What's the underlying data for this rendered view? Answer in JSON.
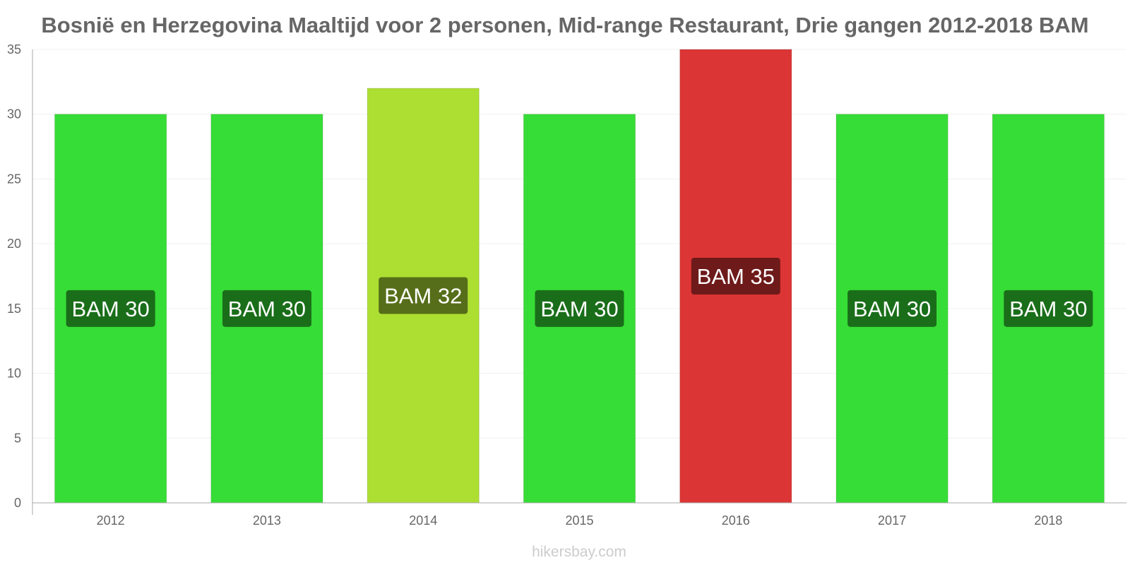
{
  "title": "Bosnië en Herzegovina Maaltijd voor 2 personen, Mid-range Restaurant, Drie gangen 2012-2018 BAM",
  "credit": "hikersbay.com",
  "chart_data": {
    "type": "bar",
    "title": "Bosnië en Herzegovina Maaltijd voor 2 personen, Mid-range Restaurant, Drie gangen 2012-2018 BAM",
    "categories": [
      "2012",
      "2013",
      "2014",
      "2015",
      "2016",
      "2017",
      "2018"
    ],
    "values": [
      30,
      30,
      32,
      30,
      35,
      30,
      30
    ],
    "data_labels": [
      "BAM 30",
      "BAM 30",
      "BAM 32",
      "BAM 30",
      "BAM 35",
      "BAM 30",
      "BAM 30"
    ],
    "bar_colors": [
      "#36dd36",
      "#36dd36",
      "#addf32",
      "#36dd36",
      "#dc3535",
      "#36dd36",
      "#36dd36"
    ],
    "label_bg_colors": [
      "#1a6e1a",
      "#1a6e1a",
      "#566e19",
      "#1a6e1a",
      "#6e1a1a",
      "#1a6e1a",
      "#1a6e1a"
    ],
    "yticks": [
      0,
      5,
      10,
      15,
      20,
      25,
      30,
      35
    ],
    "ylim": [
      0,
      35
    ],
    "xlabel": "",
    "ylabel": "",
    "grid": true,
    "legend": "none"
  }
}
